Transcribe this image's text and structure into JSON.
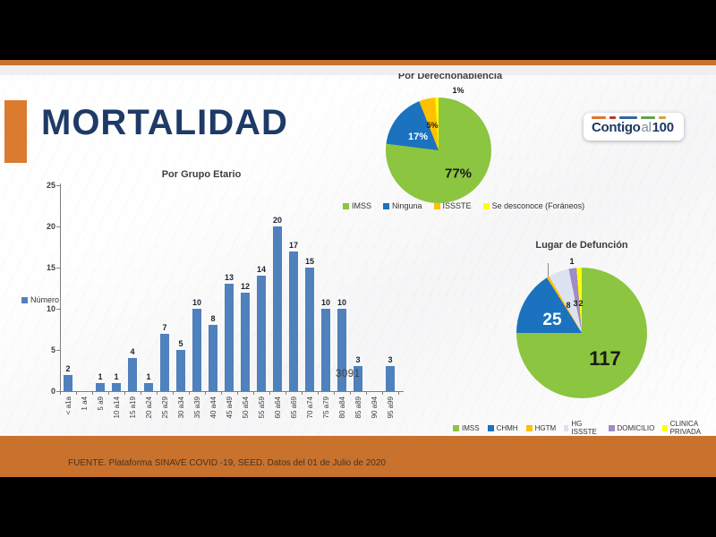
{
  "slide": {
    "title": "MORTALIDAD",
    "footer_text": "FUENTE. Plataforma SINAVE COVID -19, SEED. Datos del 01 de Julio de 2020",
    "logo": {
      "word1": "Contigo",
      "word2": "al",
      "word3": "100"
    }
  },
  "colors": {
    "strip_orange": "#C9722E",
    "accent_orange": "#DB7B30",
    "title_navy": "#1E3A66",
    "bar_blue": "#4F81BD",
    "pie_green": "#8CC540",
    "pie_blue": "#1B72BE",
    "pie_orange": "#FFC000",
    "pie_yellow": "#FFFF00",
    "pie_gray": "#DCE3F0",
    "pie_purple": "#A08CC8"
  },
  "chart_data": [
    {
      "type": "bar",
      "title": "Por Grupo Etario",
      "legend": [
        {
          "label": "Número",
          "color": "#4F81BD"
        }
      ],
      "categories": [
        "< a1a",
        "1 a4",
        "5 a9",
        "10 a14",
        "15 a19",
        "20 a24",
        "25 a29",
        "30 a34",
        "35 a39",
        "40 a44",
        "45 a49",
        "50 a54",
        "55 a59",
        "60 a64",
        "65 a69",
        "70 a74",
        "75 a79",
        "80 a84",
        "85 a89",
        "90 a94",
        "95 a99"
      ],
      "values": [
        2,
        0,
        1,
        1,
        4,
        1,
        7,
        5,
        10,
        8,
        13,
        12,
        14,
        20,
        17,
        15,
        10,
        10,
        3,
        0,
        3
      ],
      "ylim": [
        0,
        25
      ],
      "yticks": [
        0,
        5,
        10,
        15,
        20,
        25
      ],
      "grid": false,
      "annotation": "3091"
    },
    {
      "type": "pie",
      "title": "Por Derechohabiencia",
      "legend_position": "bottom",
      "slices": [
        {
          "label": "IMSS",
          "value": 77,
          "text": "77%",
          "color": "#8CC540"
        },
        {
          "label": "Ninguna",
          "value": 17,
          "text": "17%",
          "color": "#1B72BE"
        },
        {
          "label": "ISSSTE",
          "value": 5,
          "text": "5%",
          "color": "#FFC000"
        },
        {
          "label": "Se desconoce (Foráneos)",
          "value": 1,
          "text": "1%",
          "color": "#FFFF00"
        }
      ]
    },
    {
      "type": "pie",
      "title": "Lugar de Defunción",
      "legend_position": "bottom",
      "slices": [
        {
          "label": "IMSS",
          "value": 117,
          "text": "117",
          "color": "#8CC540"
        },
        {
          "label": "CHMH",
          "value": 25,
          "text": "25",
          "color": "#1B72BE"
        },
        {
          "label": "HGTM",
          "value": 1,
          "text": "1",
          "color": "#FFC000"
        },
        {
          "label": "HG ISSSTE",
          "value": 8,
          "text": "8",
          "color": "#DCE3F0"
        },
        {
          "label": "DOMICILIO",
          "value": 3,
          "text": "3",
          "color": "#A08CC8"
        },
        {
          "label": "CLINICA PRIVADA",
          "value": 2,
          "text": "2",
          "color": "#FFFF00"
        }
      ]
    }
  ]
}
